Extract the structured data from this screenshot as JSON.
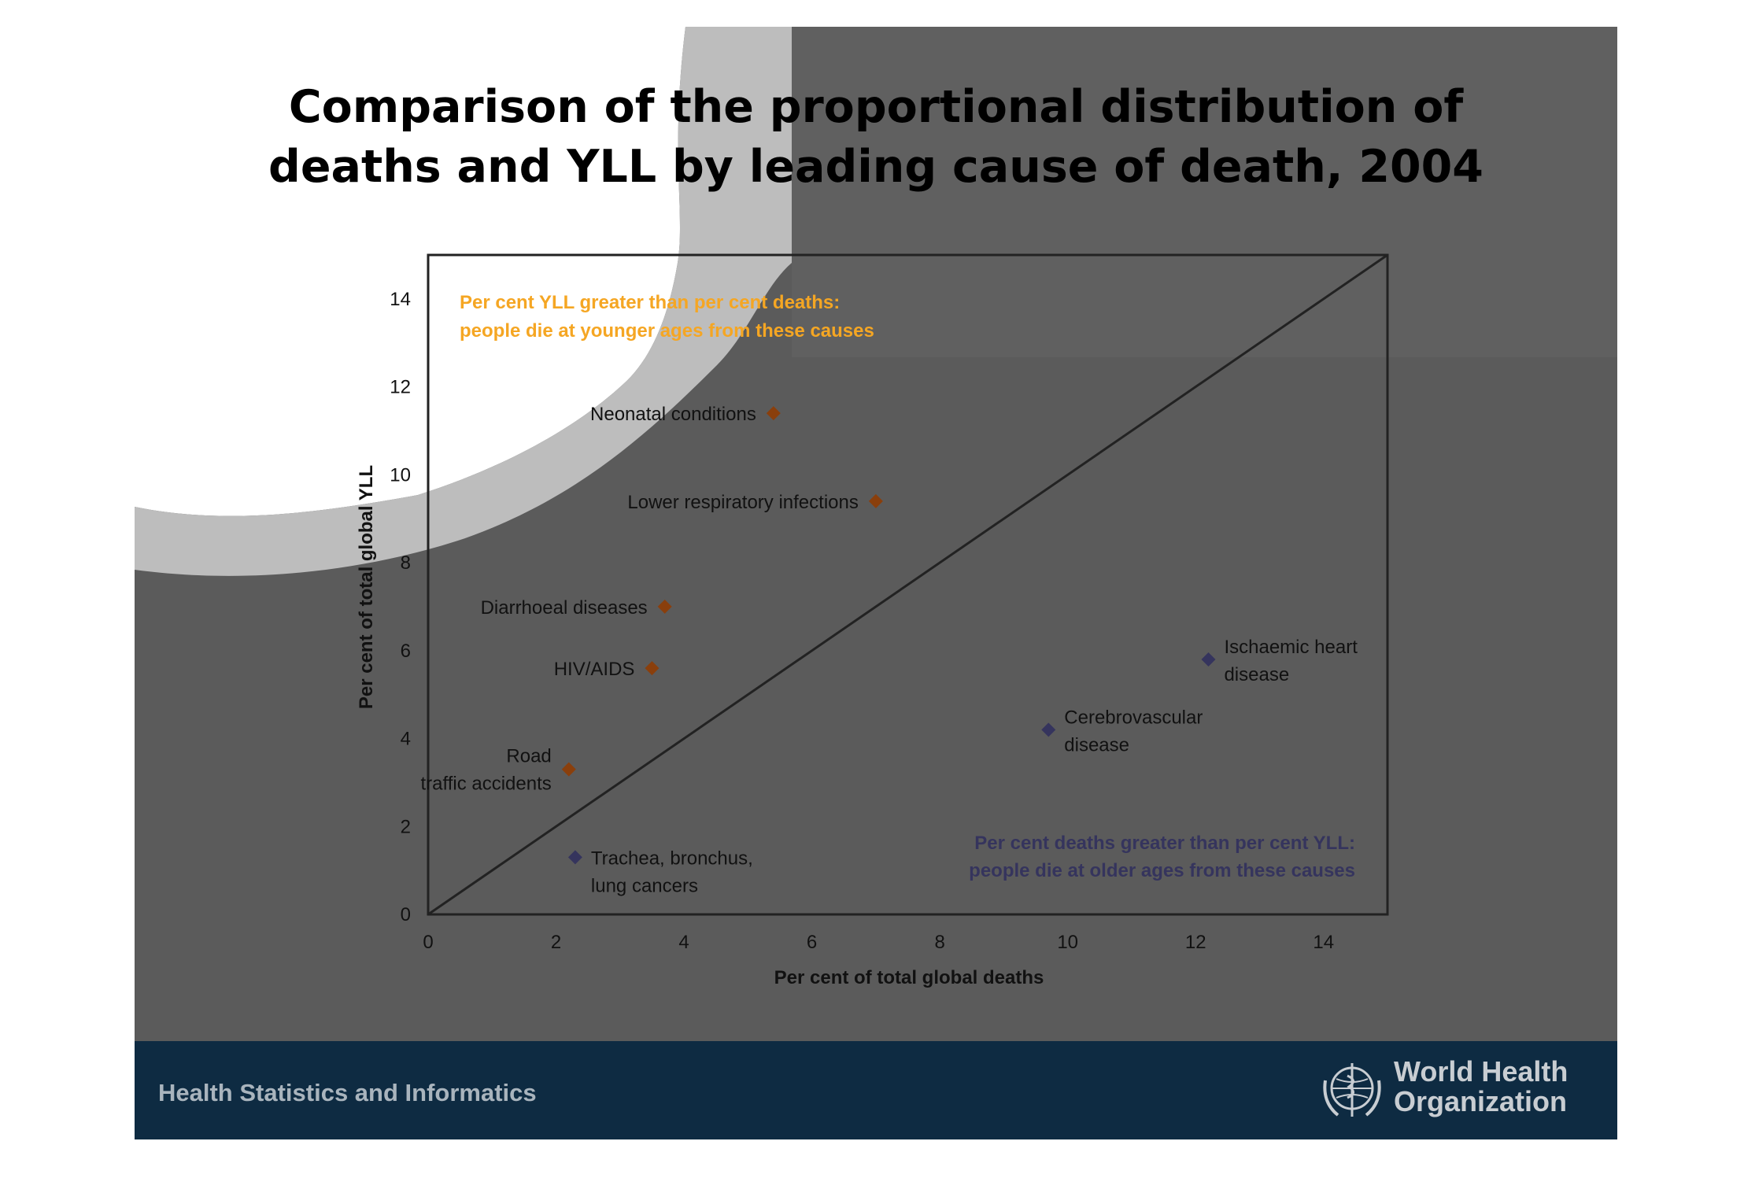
{
  "slide": {
    "title_line1": "Comparison of the proportional distribution of",
    "title_line2": "deaths and YLL by leading cause of death, 2004",
    "footer_left": "Health Statistics and Informatics",
    "org_line1": "World Health",
    "org_line2": "Organization",
    "colors": {
      "background": "#5b5b5b",
      "footer": "#0e2b42",
      "orange": "#f5a623",
      "brown": "#8a3f0c",
      "navy": "#35345d"
    }
  },
  "chart_data": {
    "type": "scatter",
    "title": "Comparison of the proportional distribution of deaths and YLL by leading cause of death, 2004",
    "xlabel": "Per cent of total global deaths",
    "ylabel": "Per cent of total global YLL",
    "xlim": [
      0,
      15
    ],
    "ylim": [
      0,
      15
    ],
    "xticks": [
      0,
      2,
      4,
      6,
      8,
      10,
      12,
      14
    ],
    "yticks": [
      0,
      2,
      4,
      6,
      8,
      10,
      12,
      14
    ],
    "reference_line": {
      "from": [
        0,
        0
      ],
      "to": [
        15,
        15
      ]
    },
    "grid": false,
    "annotations": {
      "upper": {
        "line1": "Per cent YLL greater than per cent deaths:",
        "line2": "people die at younger ages from these causes"
      },
      "lower": {
        "line1": "Per cent deaths greater than per cent YLL:",
        "line2": "people die at older ages from these causes"
      }
    },
    "series": [
      {
        "name": "Per cent YLL greater than per cent deaths",
        "color": "#8a3f0c",
        "marker": "diamond",
        "points": [
          {
            "label": "Neonatal conditions",
            "x": 5.4,
            "y": 11.4
          },
          {
            "label": "Lower respiratory infections",
            "x": 7.0,
            "y": 9.4
          },
          {
            "label": "Diarrhoeal diseases",
            "x": 3.7,
            "y": 7.0
          },
          {
            "label": "HIV/AIDS",
            "x": 3.5,
            "y": 5.6
          },
          {
            "label": "Road traffic accidents",
            "x": 2.2,
            "y": 3.3
          }
        ]
      },
      {
        "name": "Per cent deaths greater than per cent YLL",
        "color": "#35345d",
        "marker": "diamond",
        "points": [
          {
            "label": "Ischaemic heart disease",
            "x": 12.2,
            "y": 5.8
          },
          {
            "label": "Cerebrovascular disease",
            "x": 9.7,
            "y": 4.2
          },
          {
            "label": "Trachea, bronchus, lung cancers",
            "x": 2.3,
            "y": 1.3
          }
        ]
      }
    ]
  }
}
